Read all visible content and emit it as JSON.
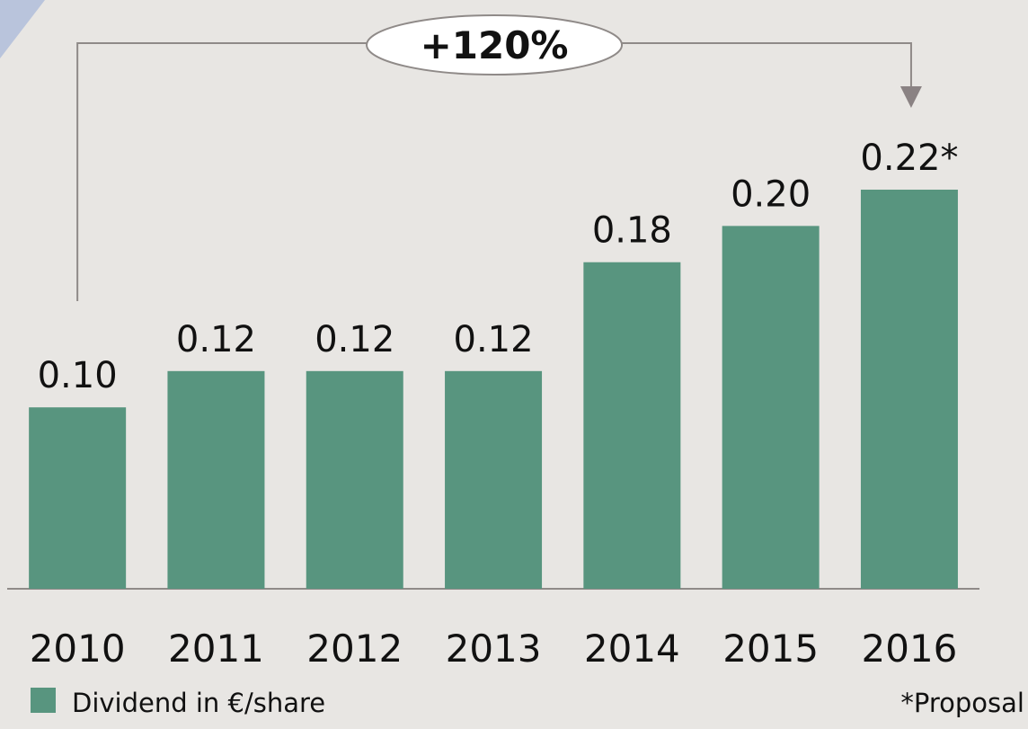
{
  "chart_data": {
    "type": "bar",
    "categories": [
      "2010",
      "2011",
      "2012",
      "2013",
      "2014",
      "2015",
      "2016"
    ],
    "series": [
      {
        "name": "Dividend in €/share",
        "color": "#58957f",
        "values": [
          0.1,
          0.12,
          0.12,
          0.12,
          0.18,
          0.2,
          0.22
        ],
        "value_labels": [
          "0.10",
          "0.12",
          "0.12",
          "0.12",
          "0.18",
          "0.20",
          "0.22*"
        ]
      }
    ],
    "annotations": {
      "growth": "+120%",
      "footnote": "*Proposal"
    }
  }
}
